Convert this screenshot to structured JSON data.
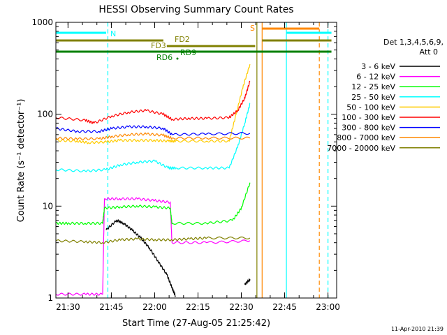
{
  "chart_data": {
    "type": "line",
    "title": "HESSI Observing Summary Count Rates",
    "xlabel": "Start Time (27-Aug-05 21:25:42)",
    "ylabel": "Count Rate (s⁻¹ detector⁻¹)",
    "yscale": "log",
    "xlim": [
      21.43,
      23.05
    ],
    "ylim": [
      1,
      1000
    ],
    "x_unit": "decimal hours",
    "x_ticks": [
      21.5,
      21.75,
      22.0,
      22.25,
      22.5,
      22.75,
      23.0
    ],
    "x_tick_labels": [
      "21:30",
      "21:45",
      "22:00",
      "22:15",
      "22:30",
      "22:45",
      "23:00"
    ],
    "y_ticks": [
      1,
      10,
      100,
      1000
    ],
    "y_tick_labels": [
      "1",
      "10",
      "100",
      "1000"
    ],
    "grid": false,
    "legend_position": "right",
    "legend_header": [
      "Det 1,3,4,5,6,9,",
      "Att 0"
    ],
    "footer": "11-Apr-2010 21:39",
    "series": [
      {
        "name": "3 - 6 keV",
        "color": "#000000",
        "x": [
          21.43,
          21.7,
          21.72,
          21.78,
          21.82,
          21.87,
          21.92,
          21.97,
          22.02,
          22.07,
          22.1,
          22.12,
          22.16,
          22.5,
          22.52,
          22.55
        ],
        "y": [
          null,
          null,
          5.5,
          7,
          6.5,
          5.5,
          4.5,
          3.5,
          2.5,
          1.8,
          1.3,
          1.05,
          null,
          null,
          1.4,
          1.6
        ]
      },
      {
        "name": "6 - 12 keV",
        "color": "#ff00ff",
        "x": [
          21.43,
          21.6,
          21.7,
          21.71,
          21.8,
          21.9,
          22.0,
          22.09,
          22.1,
          22.3,
          22.55
        ],
        "y": [
          1.1,
          1.1,
          1.1,
          12,
          12,
          12,
          11.5,
          11,
          4,
          4,
          4.2
        ]
      },
      {
        "name": "12 - 25 keV",
        "color": "#00ff00",
        "x": [
          21.43,
          21.5,
          21.6,
          21.7,
          21.71,
          21.8,
          21.9,
          22.0,
          22.09,
          22.1,
          22.3,
          22.45,
          22.5,
          22.55
        ],
        "y": [
          6.5,
          6.5,
          6.5,
          6.5,
          9.5,
          9.8,
          10,
          9.8,
          9.5,
          6.5,
          6.5,
          7,
          9.5,
          18
        ]
      },
      {
        "name": "25 - 50 keV",
        "color": "#00ffff",
        "x": [
          21.43,
          21.6,
          21.72,
          21.8,
          21.9,
          22.0,
          22.08,
          22.12,
          22.3,
          22.43,
          22.48,
          22.52,
          22.55
        ],
        "y": [
          25,
          24,
          25,
          28,
          30,
          31,
          26,
          26,
          26,
          26,
          45,
          80,
          130
        ]
      },
      {
        "name": "50 - 100 keV",
        "color": "#ffcc00",
        "x": [
          21.43,
          21.55,
          21.62,
          21.72,
          21.8,
          21.9,
          22.0,
          22.08,
          22.12,
          22.3,
          22.43,
          22.47,
          22.51,
          22.55
        ],
        "y": [
          52,
          51,
          49,
          50,
          52,
          52,
          52,
          51,
          51,
          51,
          51,
          100,
          200,
          350
        ]
      },
      {
        "name": "100 - 300 keV",
        "color": "#ff0000",
        "x": [
          21.43,
          21.6,
          21.65,
          21.75,
          21.85,
          21.95,
          22.05,
          22.1,
          22.2,
          22.3,
          22.43,
          22.48,
          22.52,
          22.55
        ],
        "y": [
          92,
          86,
          80,
          95,
          105,
          110,
          100,
          88,
          90,
          90,
          92,
          110,
          150,
          230
        ]
      },
      {
        "name": "300 - 800 keV",
        "color": "#0000ff",
        "x": [
          21.43,
          21.55,
          21.68,
          21.75,
          21.85,
          21.95,
          22.05,
          22.1,
          22.3,
          22.55
        ],
        "y": [
          70,
          65,
          65,
          70,
          73,
          73,
          70,
          60,
          61,
          62
        ]
      },
      {
        "name": "800 - 7000 keV",
        "color": "#ff8800",
        "x": [
          21.43,
          21.55,
          21.68,
          21.75,
          21.85,
          21.95,
          22.05,
          22.1,
          22.3,
          22.55
        ],
        "y": [
          55,
          54,
          54,
          57,
          60,
          61,
          59,
          55,
          55,
          55
        ]
      },
      {
        "name": "7000 - 20000 keV",
        "color": "#808000",
        "x": [
          21.43,
          21.6,
          21.7,
          21.8,
          21.9,
          22.0,
          22.1,
          22.2,
          22.3,
          22.55
        ],
        "y": [
          4.2,
          4.1,
          4.0,
          4.3,
          4.4,
          4.3,
          4.3,
          4.4,
          4.5,
          4.5
        ]
      }
    ],
    "annotations": [
      {
        "label": "N",
        "color": "#00ffff"
      },
      {
        "label": "S",
        "color": "#ff8800"
      },
      {
        "label": "FD2",
        "color": "#808000"
      },
      {
        "label": "FD3",
        "color": "#808000"
      },
      {
        "label": "RD6",
        "color": "#008000"
      },
      {
        "label": "RD9",
        "color": "#008000"
      }
    ],
    "bars": [
      {
        "name": "N",
        "color": "#00ffff",
        "segments": [
          [
            21.43,
            21.72
          ],
          [
            22.76,
            23.02
          ]
        ]
      },
      {
        "name": "S",
        "color": "#ff8800",
        "segments": [
          [
            22.62,
            22.95
          ]
        ]
      },
      {
        "name": "FD2",
        "color": "#808000",
        "segments": [
          [
            21.43,
            22.05
          ],
          [
            22.62,
            23.02
          ]
        ]
      },
      {
        "name": "FD3",
        "color": "#808000",
        "segments": [
          [
            22.07,
            22.58
          ]
        ]
      },
      {
        "name": "RD",
        "color": "#008000",
        "segments": [
          [
            21.43,
            23.02
          ]
        ]
      }
    ],
    "event_lines": [
      {
        "x": 21.73,
        "color": "#00ffff",
        "style": "dashed"
      },
      {
        "x": 22.59,
        "color": "#808000",
        "style": "solid"
      },
      {
        "x": 22.62,
        "color": "#ff8800",
        "style": "solid"
      },
      {
        "x": 22.76,
        "color": "#00ffff",
        "style": "solid"
      },
      {
        "x": 22.95,
        "color": "#ff8800",
        "style": "dashed"
      },
      {
        "x": 23.0,
        "color": "#00ffff",
        "style": "dashed"
      }
    ]
  }
}
